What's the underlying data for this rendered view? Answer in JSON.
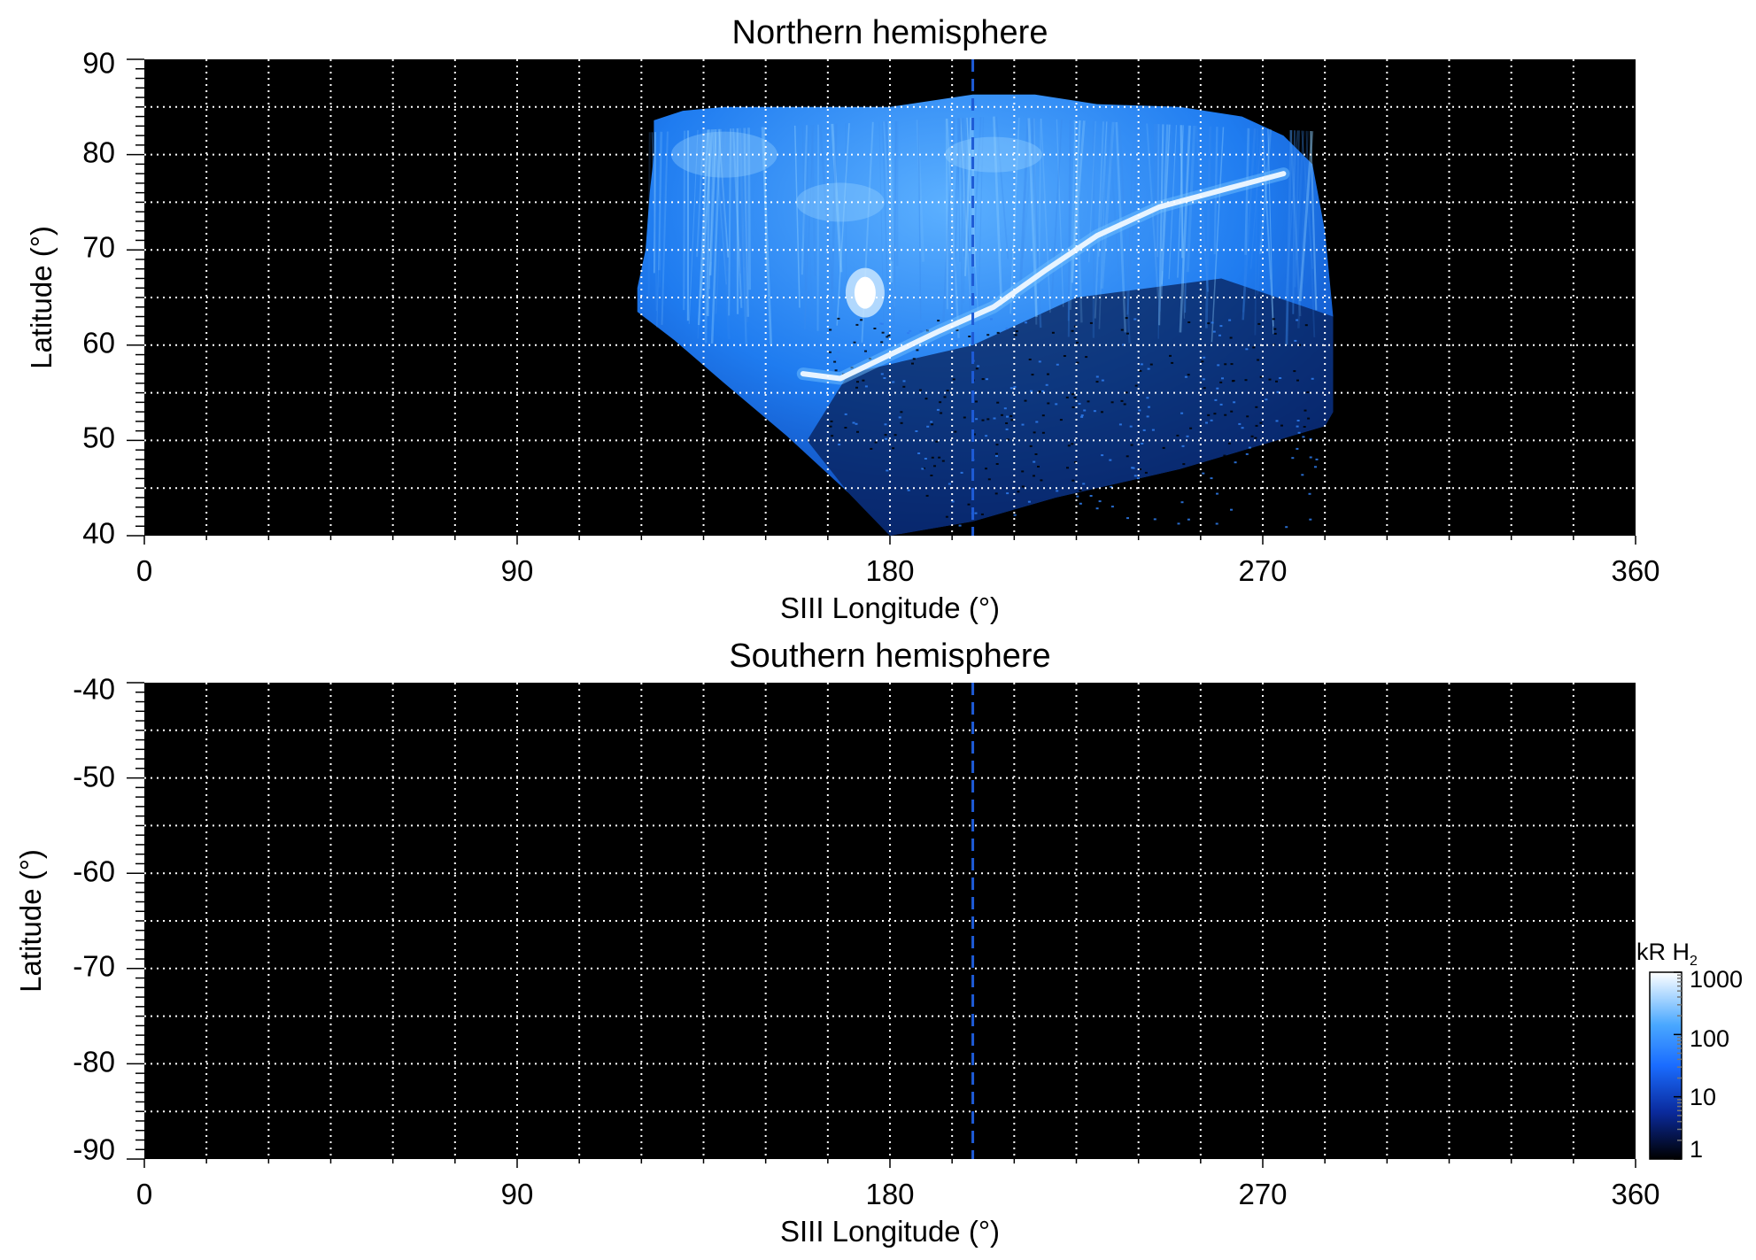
{
  "chart_data": [
    {
      "type": "heatmap",
      "title": "Northern hemisphere",
      "xlabel": "SIII Longitude (°)",
      "ylabel": "Latitude (°)",
      "xlim": [
        0,
        360
      ],
      "ylim": [
        40,
        90
      ],
      "x_ticks": [
        "0",
        "90",
        "180",
        "270",
        "360"
      ],
      "y_ticks": [
        "40",
        "50",
        "60",
        "70",
        "80",
        "90"
      ],
      "grid": true,
      "grid_style": "dotted white, every 15° longitude and 5° latitude",
      "background": "#000000",
      "reference_line": {
        "longitude": 200,
        "style": "dashed",
        "color": "#1e5bd6"
      },
      "emission_region": {
        "lon_range": [
          119,
          287
        ],
        "lat_range": [
          40,
          87
        ],
        "colormap": "black-blue-white"
      },
      "main_oval": {
        "points": [
          [
            159,
            57
          ],
          [
            168,
            56.5
          ],
          [
            180,
            59
          ],
          [
            192,
            61.5
          ],
          [
            205,
            64
          ],
          [
            218,
            68
          ],
          [
            230,
            71.5
          ],
          [
            245,
            74.5
          ],
          [
            262,
            76.5
          ],
          [
            275,
            78
          ]
        ],
        "color": "#e8f4ff"
      },
      "bright_spot": {
        "lon": 174,
        "lat": 65.5,
        "color": "#ffffff"
      }
    },
    {
      "type": "heatmap",
      "title": "Southern hemisphere",
      "xlabel": "SIII Longitude (°)",
      "ylabel": "Latitude (°)",
      "xlim": [
        0,
        360
      ],
      "ylim": [
        -90,
        -40
      ],
      "x_ticks": [
        "0",
        "90",
        "180",
        "270",
        "360"
      ],
      "y_ticks": [
        "-40",
        "-50",
        "-60",
        "-70",
        "-80",
        "-90"
      ],
      "grid": true,
      "grid_style": "dotted white, every 15° longitude and 5° latitude",
      "background": "#000000",
      "reference_line": {
        "longitude": 200,
        "style": "dashed",
        "color": "#1e5bd6"
      }
    }
  ],
  "colorbar": {
    "label": "kR H",
    "label_subscript": "2",
    "scale": "log",
    "range": [
      1,
      1000
    ],
    "tick_labels": [
      "1000",
      "100",
      "10",
      "1"
    ],
    "tick_values": [
      1000,
      100,
      10,
      1
    ],
    "colors": [
      "#ffffff",
      "#4aa8ff",
      "#1a6cff",
      "#0a2a9c",
      "#000000"
    ]
  }
}
